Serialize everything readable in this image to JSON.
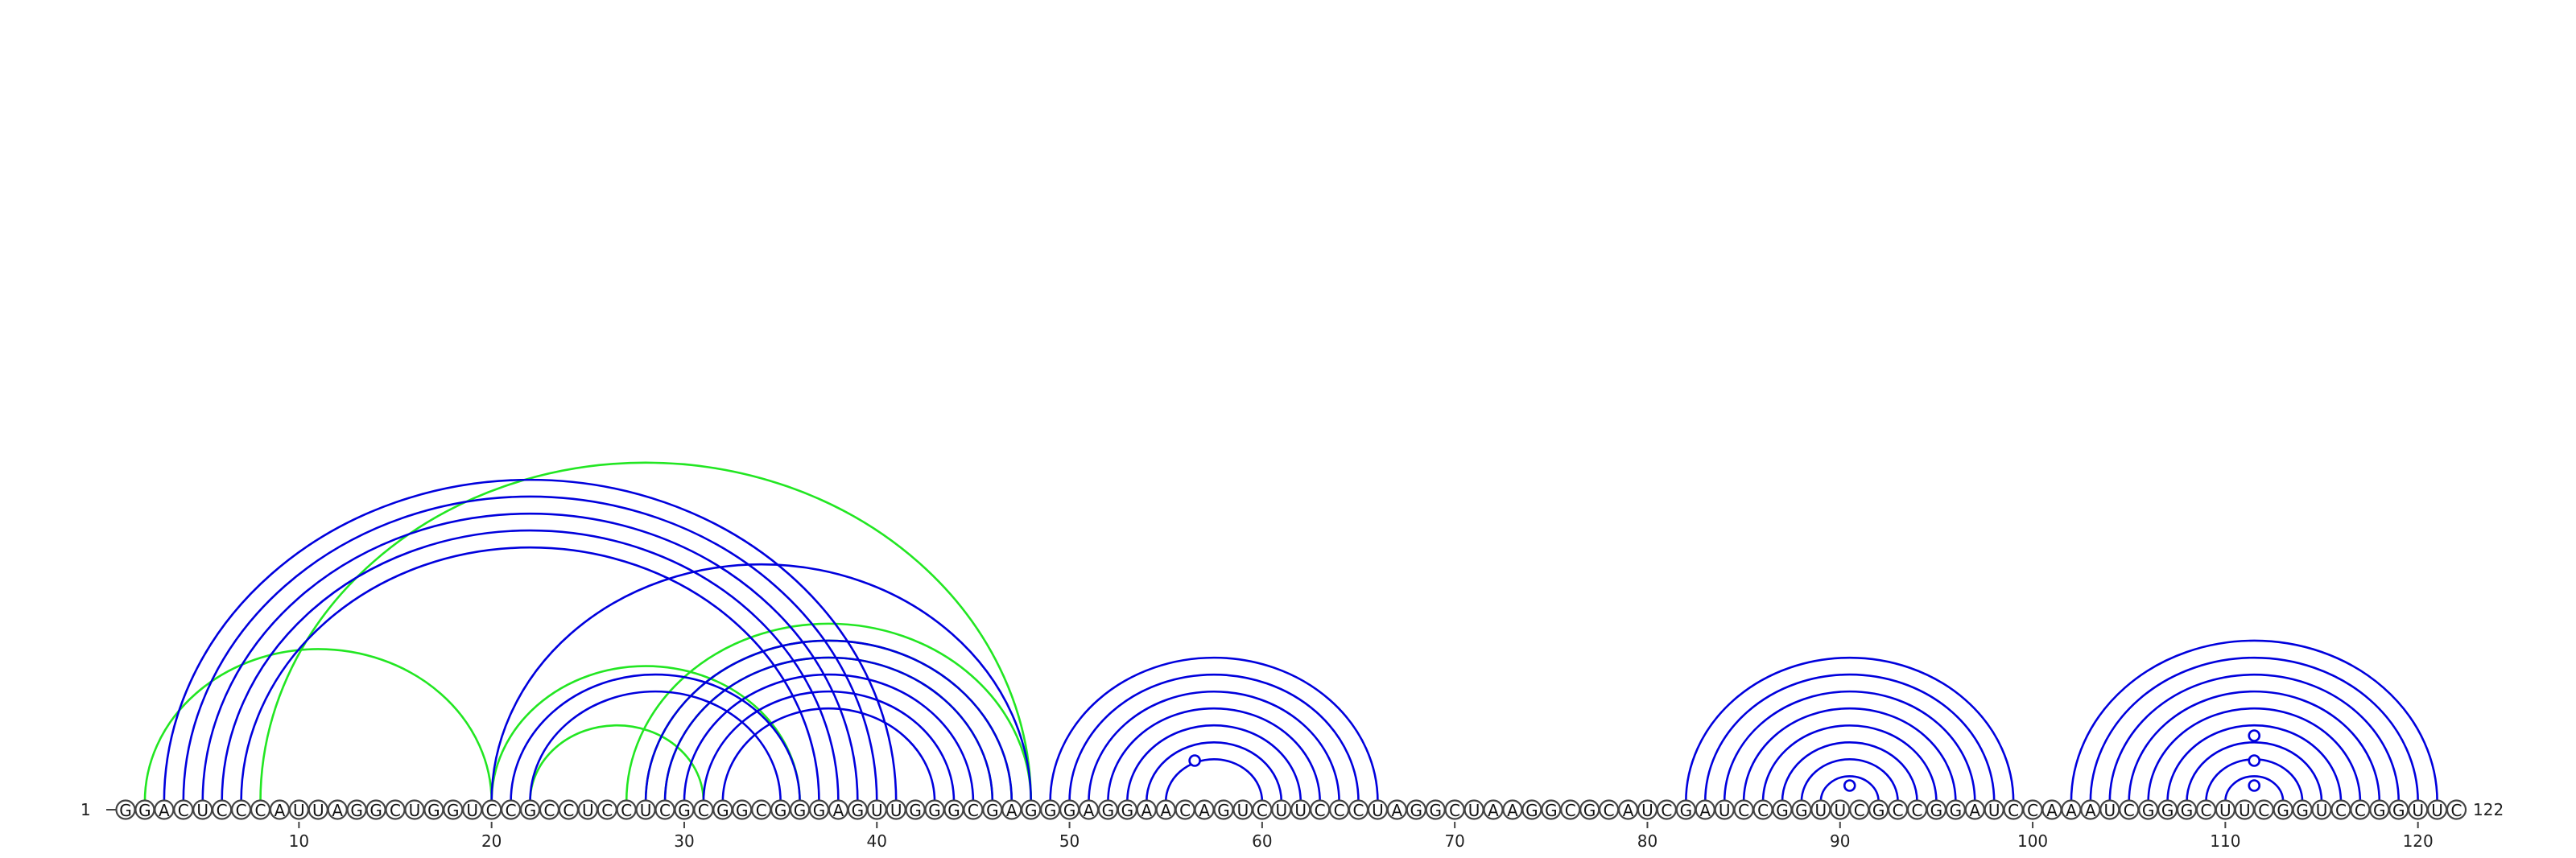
{
  "sequence": "GGACUCCCAUUAGGCUGGUCCGCCUCCUCGCGGCGGGAGUUGGGCGAGGGAGGAACAGUCUUCCCUAGGCUAAGGCGCAUCGAUCCGGUUCGCCGGAUCCAAAUCGGGCUUCGGUCCGGUUC",
  "labels": {
    "start": "1",
    "end": "122"
  },
  "ticks": [
    "10",
    "20",
    "30",
    "40",
    "50",
    "60",
    "70",
    "80",
    "90",
    "100",
    "110",
    "120"
  ],
  "colors": {
    "primary_arcs": "#0000dd",
    "alternative_arcs": "#22e622"
  },
  "primary_pairs": [
    [
      3,
      41
    ],
    [
      4,
      40
    ],
    [
      5,
      39
    ],
    [
      6,
      38
    ],
    [
      7,
      37
    ],
    [
      20,
      48
    ],
    [
      21,
      36
    ],
    [
      22,
      35
    ],
    [
      28,
      47
    ],
    [
      29,
      46
    ],
    [
      30,
      45
    ],
    [
      31,
      44
    ],
    [
      32,
      43
    ],
    [
      49,
      66
    ],
    [
      50,
      65
    ],
    [
      51,
      64
    ],
    [
      52,
      63
    ],
    [
      53,
      62
    ],
    [
      54,
      61
    ],
    [
      55,
      60
    ],
    [
      82,
      99
    ],
    [
      83,
      98
    ],
    [
      84,
      97
    ],
    [
      85,
      96
    ],
    [
      86,
      95
    ],
    [
      87,
      94
    ],
    [
      88,
      93
    ],
    [
      89,
      92
    ],
    [
      102,
      121
    ],
    [
      103,
      120
    ],
    [
      104,
      119
    ],
    [
      105,
      118
    ],
    [
      106,
      117
    ],
    [
      107,
      116
    ],
    [
      108,
      115
    ],
    [
      109,
      114
    ],
    [
      110,
      113
    ]
  ],
  "alternative_pairs": [
    [
      2,
      20
    ],
    [
      8,
      48
    ],
    [
      20,
      36
    ],
    [
      22,
      31
    ],
    [
      27,
      48
    ],
    [
      28,
      47
    ],
    [
      29,
      46
    ]
  ],
  "loop_markers": [
    {
      "position": 56.5,
      "tier": 1
    },
    {
      "position": 90.5,
      "tier": 0
    },
    {
      "position": 111.5,
      "tier": 0
    },
    {
      "position": 111.5,
      "tier": 1
    },
    {
      "position": 111.5,
      "tier": 2
    }
  ]
}
